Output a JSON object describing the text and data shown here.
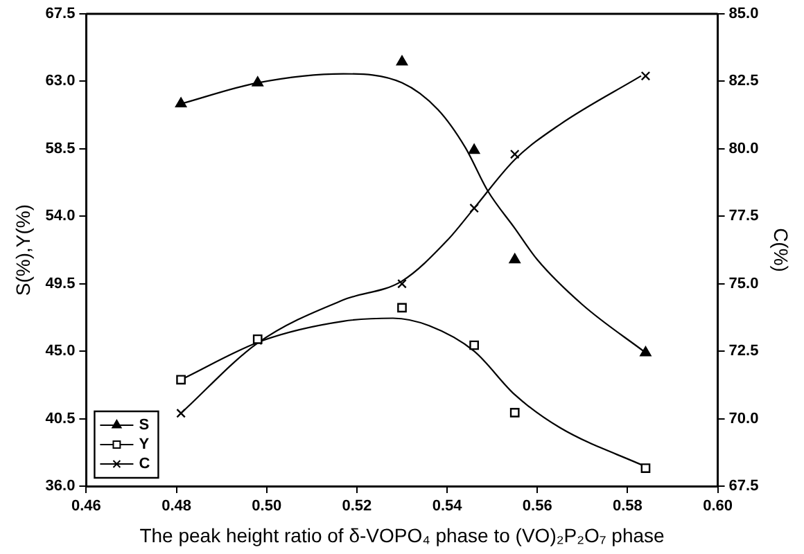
{
  "chart_data": {
    "type": "scatter",
    "xlabel": "The peak height ratio of δ-VOPO₄ phase to (VO)₂P₂O₇ phase",
    "ylabel": "S(%),Y(%)",
    "y2label": "C(%)",
    "xlim": [
      0.46,
      0.6
    ],
    "xticks": [
      {
        "value": 0.46,
        "label": "0.46"
      },
      {
        "value": 0.48,
        "label": "0.48"
      },
      {
        "value": 0.5,
        "label": "0.50"
      },
      {
        "value": 0.52,
        "label": "0.52"
      },
      {
        "value": 0.54,
        "label": "0.54"
      },
      {
        "value": 0.56,
        "label": "0.56"
      },
      {
        "value": 0.58,
        "label": "0.58"
      },
      {
        "value": 0.6,
        "label": "0.60"
      }
    ],
    "ylim": [
      36,
      67.5
    ],
    "yticks": [
      {
        "value": 36,
        "label": "36.0"
      },
      {
        "value": 40.5,
        "label": "40.5"
      },
      {
        "value": 45,
        "label": "45.0"
      },
      {
        "value": 49.5,
        "label": "49.5"
      },
      {
        "value": 54,
        "label": "54.0"
      },
      {
        "value": 58.5,
        "label": "58.5"
      },
      {
        "value": 63,
        "label": "63.0"
      },
      {
        "value": 67.5,
        "label": "67.5"
      }
    ],
    "y2lim": [
      67.5,
      85
    ],
    "y2ticks": [
      67.5,
      {
        "value": 70,
        "label": "70.0"
      },
      72.5,
      {
        "value": 75,
        "label": "75.0"
      },
      77.5,
      {
        "value": 80,
        "label": "80.0"
      },
      82.5,
      {
        "value": 85,
        "label": "85.0"
      }
    ],
    "grid": false,
    "legend": "bottom left",
    "series": [
      {
        "name": "S",
        "type": "scatter",
        "marker": "triangle",
        "color": "#000000",
        "x": [
          0.481,
          0.498,
          0.53,
          0.546,
          0.555,
          0.584
        ],
        "values": [
          61.5,
          62.9,
          64.3,
          58.4,
          51.1,
          44.9
        ]
      },
      {
        "name": "Y",
        "type": "scatter",
        "marker": "square",
        "color": "#000000",
        "x": [
          0.481,
          0.498,
          0.53,
          0.546,
          0.555,
          0.584
        ],
        "values": [
          43.1,
          45.8,
          47.9,
          45.4,
          40.9,
          37.2
        ]
      },
      {
        "name": "C",
        "type": "scatter",
        "marker": "cross",
        "color": "#000000",
        "axis": "y2",
        "x": [
          0.481,
          0.498,
          0.53,
          0.546,
          0.555,
          0.584
        ],
        "values": [
          70.2,
          72.9,
          75.0,
          77.8,
          79.8,
          82.7
        ]
      },
      {
        "type": "line",
        "marker": "none",
        "color": "#000000",
        "x": [
          0.481,
          0.498,
          0.517,
          0.53,
          0.538,
          0.544,
          0.549,
          0.555,
          0.56,
          0.57,
          0.584
        ],
        "values": [
          61.5,
          62.9,
          63.5,
          62.9,
          61.1,
          58.6,
          55.7,
          53.2,
          51.1,
          48.1,
          44.9
        ]
      },
      {
        "type": "line",
        "marker": "none",
        "color": "#000000",
        "x": [
          0.481,
          0.499,
          0.517,
          0.528,
          0.536,
          0.546,
          0.555,
          0.565,
          0.584
        ],
        "values": [
          43.1,
          45.7,
          47.0,
          47.2,
          46.7,
          45.0,
          42.1,
          39.9,
          37.3
        ]
      },
      {
        "type": "line",
        "marker": "none",
        "color": "#000000",
        "axis": "y2",
        "x": [
          0.481,
          0.498,
          0.517,
          0.53,
          0.54,
          0.546,
          0.555,
          0.565,
          0.583
        ],
        "values": [
          70.2,
          72.8,
          74.4,
          75.1,
          76.6,
          77.8,
          79.6,
          80.9,
          82.7
        ]
      }
    ]
  }
}
